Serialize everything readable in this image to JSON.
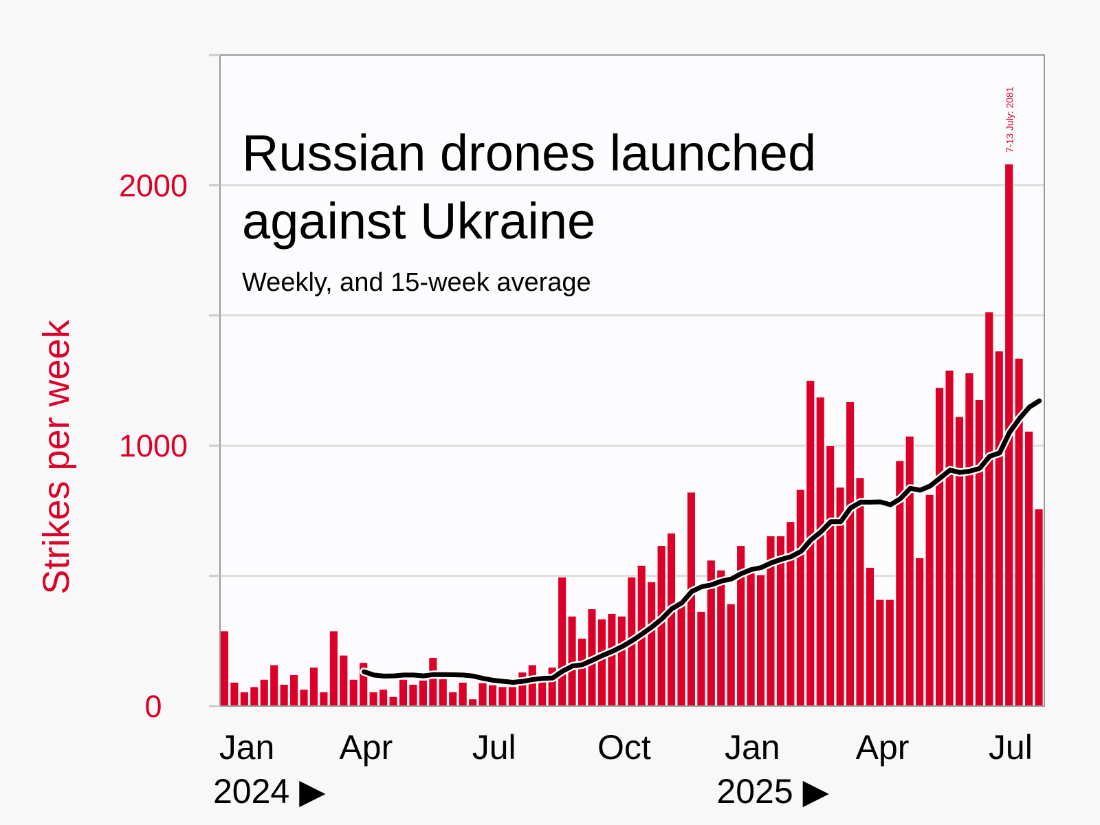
{
  "chart_data": {
    "type": "bar",
    "title": "Russian drones launched against Ukraine",
    "title_lines": [
      "Russian drones launched",
      "against Ukraine"
    ],
    "subtitle": "Weekly, and 15-week average",
    "ylabel": "Strikes per week",
    "xlabel": "",
    "ylim": [
      0,
      2500
    ],
    "grid": true,
    "y_ticks": [
      0,
      500,
      1000,
      1500,
      2000,
      2500
    ],
    "y_tick_labels": [
      {
        "value": 0,
        "label": "0"
      },
      {
        "value": 1000,
        "label": "1000"
      },
      {
        "value": 2000,
        "label": "2000"
      }
    ],
    "x_ticks": [
      {
        "week": 2.7,
        "label": "Jan"
      },
      {
        "week": 14.7,
        "label": "Apr"
      },
      {
        "week": 27.6,
        "label": "Jul"
      },
      {
        "week": 40.7,
        "label": "Oct"
      },
      {
        "week": 53.6,
        "label": "Jan"
      },
      {
        "week": 66.7,
        "label": "Apr"
      },
      {
        "week": 79.6,
        "label": "Jul"
      }
    ],
    "year_labels": [
      {
        "week": 0,
        "label": "2024 ▶"
      },
      {
        "week": 50.7,
        "label": "2025 ▶"
      }
    ],
    "colors": {
      "bars": "#dc0028",
      "average": "#000000",
      "grid": "#dddddd",
      "frame": "#999999",
      "plot_bg": "#fcfcfe",
      "page_bg": "#f8f8f8"
    },
    "series": [
      {
        "type": "bar",
        "values": [
          288,
          91,
          54,
          74,
          102,
          158,
          83,
          120,
          64,
          149,
          54,
          288,
          195,
          102,
          167,
          54,
          64,
          36,
          102,
          83,
          99,
          186,
          104,
          54,
          91,
          27,
          89,
          81,
          74,
          74,
          130,
          158,
          120,
          149,
          495,
          345,
          260,
          373,
          334,
          355,
          345,
          495,
          540,
          477,
          616,
          664,
          400,
          821,
          363,
          560,
          522,
          392,
          616,
          532,
          504,
          653,
          653,
          708,
          831,
          1250,
          1186,
          999,
          840,
          1168,
          877,
          532,
          409,
          409,
          942,
          1036,
          569,
          812,
          1223,
          1289,
          1111,
          1279,
          1176,
          1513,
          1363,
          2081,
          1335,
          1055,
          757
        ]
      },
      {
        "type": "line",
        "start_week": 15,
        "values": [
          132,
          119,
          115,
          116,
          119,
          119,
          116,
          121,
          121,
          120,
          119,
          115,
          106,
          99,
          95,
          91,
          95,
          102,
          106,
          108,
          134,
          154,
          159,
          176,
          194,
          210,
          229,
          251,
          277,
          304,
          335,
          374,
          396,
          440,
          458,
          466,
          480,
          488,
          509,
          524,
          532,
          550,
          563,
          574,
          594,
          638,
          669,
          708,
          708,
          761,
          783,
          783,
          784,
          773,
          796,
          836,
          829,
          845,
          875,
          906,
          897,
          902,
          913,
          959,
          972,
          1051,
          1104,
          1148,
          1172
        ]
      }
    ],
    "annotations": [
      {
        "week": 80,
        "text": "7-13 July: 2081"
      }
    ]
  }
}
